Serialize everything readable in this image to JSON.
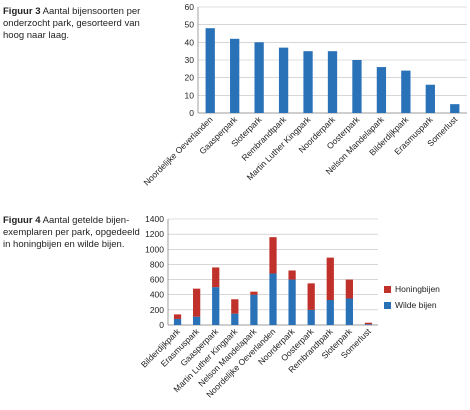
{
  "captions": [
    {
      "label": "Figuur 3",
      "text": "Aantal bijensoorten per onderzocht park, gesorteerd van hoog naar laag."
    },
    {
      "label": "Figuur 4",
      "text": "Aantal getelde bijen-exemplaren per park, opgedeeld in honingbijen en wilde bijen."
    }
  ],
  "colors": {
    "blue": "#2a72b8",
    "red": "#c0312b",
    "axis": "#888888",
    "grid": "#bfbfbf"
  },
  "chart_data": [
    {
      "type": "bar",
      "title": "Figuur 3 Aantal bijensoorten per onderzocht park, gesorteerd van hoog naar laag.",
      "categories": [
        "Noordelijke Oeverlanden",
        "Gaasperpark",
        "Sloterpark",
        "Rembrandtpark",
        "Martin Luther Kingpark",
        "Noorderpark",
        "Oosterpark",
        "Nelson Mandelapark",
        "Bilderdijkpark",
        "Erasmuspark",
        "Somerlust"
      ],
      "values": [
        48,
        42,
        40,
        37,
        35,
        35,
        30,
        26,
        24,
        16,
        5
      ],
      "ylim": [
        0,
        60
      ],
      "yticks": [
        0,
        10,
        20,
        30,
        40,
        50,
        60
      ],
      "grid": true
    },
    {
      "type": "bar",
      "stacked": true,
      "title": "Figuur 4 Aantal getelde bijen-exemplaren per park, opgedeeld in honingbijen en wilde bijen.",
      "categories": [
        "Bilderdijkpark",
        "Erasmuspark",
        "Gaasperpark",
        "Martin Luther Kingpark",
        "Nelson Mandelapark",
        "Noordelijke Oeverlanden",
        "Noorderpark",
        "Oosterpark",
        "Rembrandtpark",
        "Sloterpark",
        "Somerlust"
      ],
      "series": [
        {
          "name": "Wilde bijen",
          "color": "blue",
          "values": [
            80,
            110,
            500,
            150,
            400,
            680,
            600,
            200,
            330,
            350,
            10
          ]
        },
        {
          "name": "Honingbijen",
          "color": "red",
          "values": [
            60,
            370,
            260,
            190,
            40,
            480,
            120,
            350,
            560,
            250,
            20
          ]
        }
      ],
      "ylim": [
        0,
        1400
      ],
      "yticks": [
        0,
        200,
        400,
        600,
        800,
        1000,
        1200,
        1400
      ],
      "grid": true,
      "legend": "right"
    }
  ]
}
